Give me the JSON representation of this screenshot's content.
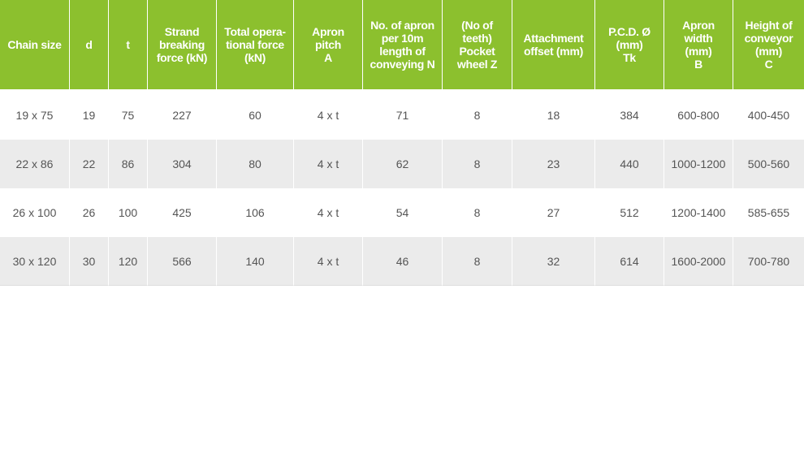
{
  "table": {
    "headers": [
      "Chain size",
      "d",
      "t",
      "Strand\nbreaking\nforce (kN)",
      "Total opera-\ntional force\n(kN)",
      "Apron\npitch\nA",
      "No. of apron\nper 10m\nlength of\nconveying N",
      "(No of\nteeth)\nPocket\nwheel Z",
      "Attachment\noffset (mm)",
      "P.C.D. Ø\n(mm)\nTk",
      "Apron\nwidth\n(mm)\nB",
      "Height of\nconveyor\n(mm)\nC"
    ],
    "rows": [
      [
        "19 x 75",
        "19",
        "75",
        "227",
        "60",
        "4 x t",
        "71",
        "8",
        "18",
        "384",
        "600-800",
        "400-450"
      ],
      [
        "22 x 86",
        "22",
        "86",
        "304",
        "80",
        "4 x t",
        "62",
        "8",
        "23",
        "440",
        "1000-1200",
        "500-560"
      ],
      [
        "26 x 100",
        "26",
        "100",
        "425",
        "106",
        "4 x t",
        "54",
        "8",
        "27",
        "512",
        "1200-1400",
        "585-655"
      ],
      [
        "30 x 120",
        "30",
        "120",
        "566",
        "140",
        "4 x t",
        "46",
        "8",
        "32",
        "614",
        "1600-2000",
        "700-780"
      ]
    ]
  },
  "colors": {
    "header_bg": "#8cc02e",
    "header_text": "#ffffff",
    "row_alt_bg": "#ebebeb",
    "cell_text": "#555555"
  }
}
